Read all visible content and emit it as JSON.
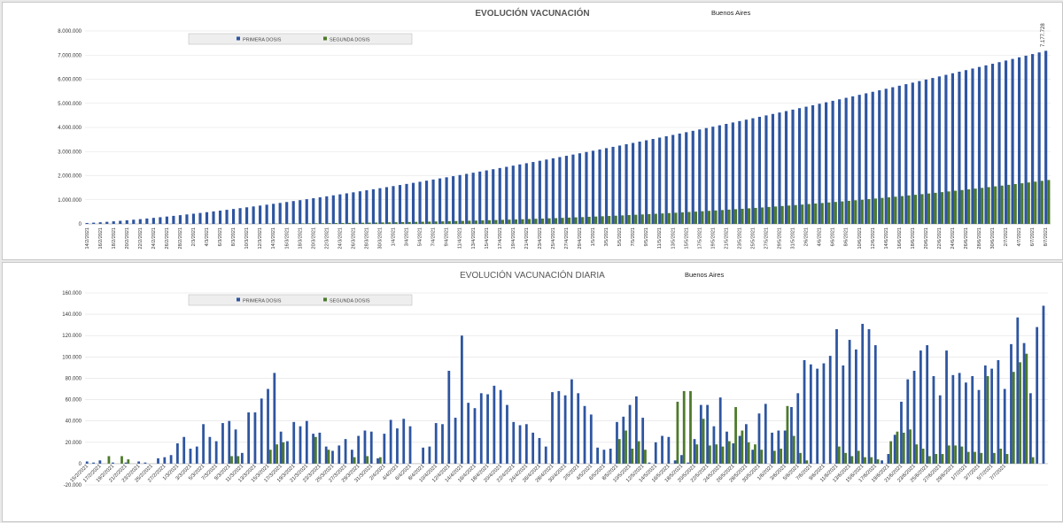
{
  "chart_data": [
    {
      "type": "bar",
      "title": "EVOLUCIÓN VACUNACIÓN",
      "subtitle": "Buenos Aires",
      "xlabel": "",
      "ylabel": "",
      "ylim": [
        0,
        8000000
      ],
      "yticks": [
        "0",
        "1.000.000",
        "2.000.000",
        "3.000.000",
        "4.000.000",
        "5.000.000",
        "6.000.000",
        "7.000.000",
        "8.000.000"
      ],
      "legend_position": "top-left",
      "series": [
        {
          "name": "PRIMERA DOSIS",
          "color": "#2e55a0",
          "start_value": 38000,
          "end_value": 7177728,
          "points": 145
        },
        {
          "name": "SEGUNDA DOSIS",
          "color": "#4d7a2b",
          "start_value": 0,
          "end_value": 1820000,
          "points": 145
        }
      ],
      "date_labels": [
        "14/2/2021",
        "16/2/2021",
        "18/2/2021",
        "20/2/2021",
        "22/2/2021",
        "24/2/2021",
        "26/2/2021",
        "28/2/2021",
        "2/3/2021",
        "4/3/2021",
        "6/3/2021",
        "8/3/2021",
        "10/3/2021",
        "12/3/2021",
        "14/3/2021",
        "16/3/2021",
        "18/3/2021",
        "20/3/2021",
        "22/3/2021",
        "24/3/2021",
        "26/3/2021",
        "28/3/2021",
        "30/3/2021",
        "1/4/2021",
        "3/4/2021",
        "5/4/2021",
        "7/4/2021",
        "9/4/2021",
        "11/4/2021",
        "13/4/2021",
        "15/4/2021",
        "17/4/2021",
        "19/4/2021",
        "21/4/2021",
        "23/4/2021",
        "25/4/2021",
        "27/4/2021",
        "29/4/2021",
        "1/5/2021",
        "3/5/2021",
        "5/5/2021",
        "7/5/2021",
        "9/5/2021",
        "11/5/2021",
        "13/5/2021",
        "15/5/2021",
        "17/5/2021",
        "19/5/2021",
        "21/5/2021",
        "23/5/2021",
        "25/5/2021",
        "27/5/2021",
        "29/5/2021",
        "31/5/2021",
        "2/6/2021",
        "4/6/2021",
        "6/6/2021",
        "8/6/2021",
        "10/6/2021",
        "12/6/2021",
        "14/6/2021",
        "16/6/2021",
        "18/6/2021",
        "20/6/2021",
        "22/6/2021",
        "24/6/2021",
        "26/6/2021",
        "28/6/2021",
        "30/6/2021",
        "2/7/2021",
        "4/7/2021",
        "6/7/2021",
        "8/7/2021"
      ],
      "last_label": "7.177.728"
    },
    {
      "type": "bar",
      "title": "EVOLUCIÓN VACUNACIÓN DIARIA",
      "subtitle": "Buenos Aires",
      "xlabel": "",
      "ylabel": "",
      "ylim": [
        -20000,
        160000
      ],
      "yticks": [
        "-20.000",
        "0",
        "20.000",
        "40.000",
        "60.000",
        "80.000",
        "100.000",
        "120.000",
        "140.000",
        "160.000"
      ],
      "legend_position": "top-left",
      "series": [
        {
          "name": "PRIMERA DOSIS",
          "color": "#2e55a0",
          "values": [
            2000,
            1000,
            3000,
            0,
            1000,
            0,
            1000,
            0,
            2000,
            1000,
            0,
            5000,
            6000,
            8000,
            19000,
            25000,
            14000,
            16000,
            37000,
            25000,
            21000,
            38000,
            40000,
            32000,
            10000,
            48000,
            48000,
            61000,
            70000,
            85000,
            30000,
            21000,
            39000,
            35000,
            40000,
            28000,
            29000,
            16000,
            12000,
            17000,
            23000,
            13000,
            26000,
            31000,
            30000,
            5000,
            28000,
            41000,
            33000,
            42000,
            35000,
            0,
            15000,
            16000,
            38000,
            37000,
            87000,
            43000,
            120000,
            57000,
            52000,
            66000,
            65000,
            73000,
            69000,
            55000,
            39000,
            36000,
            37000,
            29000,
            24000,
            16000,
            67000,
            68000,
            64000,
            79000,
            66000,
            54000,
            46000,
            15000,
            13000,
            14000,
            39000,
            44000,
            55000,
            63000,
            43000,
            1000,
            20000,
            26000,
            25000,
            3000,
            8000,
            1000,
            23000,
            55000,
            55000,
            35000,
            62000,
            30000,
            19000,
            26000,
            37000,
            13000,
            47000,
            56000,
            29000,
            31000,
            31000,
            53000,
            66000,
            97000,
            93000,
            89000,
            94000,
            101000,
            126000,
            92000,
            116000,
            107000,
            131000,
            126000,
            111000,
            3000,
            9000,
            27000,
            58000,
            79000,
            87000,
            106000,
            111000,
            82000,
            64000,
            106000,
            83000,
            85000,
            76000,
            82000,
            69000,
            92000,
            89000,
            97000,
            70000,
            112000,
            137000,
            113000,
            66000,
            128000,
            148000
          ]
        },
        {
          "name": "SEGUNDA DOSIS",
          "color": "#4d7a2b",
          "values": [
            0,
            0,
            0,
            7000,
            0,
            7000,
            4000,
            0,
            0,
            0,
            0,
            0,
            0,
            0,
            0,
            0,
            0,
            0,
            0,
            0,
            0,
            0,
            7000,
            7000,
            0,
            0,
            0,
            0,
            13000,
            18000,
            20000,
            0,
            0,
            0,
            0,
            25000,
            0,
            13000,
            0,
            0,
            0,
            6000,
            0,
            7000,
            0,
            6000,
            0,
            0,
            0,
            0,
            0,
            0,
            0,
            0,
            0,
            0,
            0,
            0,
            0,
            0,
            0,
            0,
            0,
            0,
            0,
            0,
            0,
            0,
            0,
            0,
            0,
            0,
            0,
            0,
            0,
            0,
            0,
            0,
            0,
            0,
            0,
            0,
            23000,
            31000,
            14000,
            21000,
            13000,
            0,
            0,
            0,
            0,
            58000,
            68000,
            68000,
            18000,
            42000,
            17000,
            18000,
            16000,
            21000,
            53000,
            31000,
            20000,
            18000,
            13000,
            0,
            12000,
            14000,
            54000,
            26000,
            10000,
            3000,
            0,
            0,
            0,
            0,
            16000,
            10000,
            7000,
            12000,
            6000,
            6000,
            4000,
            0,
            21000,
            30000,
            29000,
            32000,
            18000,
            14000,
            7000,
            9000,
            9000,
            17000,
            17000,
            16000,
            11000,
            11000,
            10000,
            82000,
            10000,
            14000,
            9000,
            86000,
            95000,
            103000,
            6000
          ]
        }
      ],
      "date_labels": [
        "15/2/2021",
        "17/2/2021",
        "19/2/2021",
        "21/2/2021",
        "23/2/2021",
        "25/2/2021",
        "27/2/2021",
        "1/3/2021",
        "3/3/2021",
        "5/3/2021",
        "7/3/2021",
        "9/3/2021",
        "11/3/2021",
        "13/3/2021",
        "15/3/2021",
        "17/3/2021",
        "19/3/2021",
        "21/3/2021",
        "23/3/2021",
        "25/3/2021",
        "27/3/2021",
        "29/3/2021",
        "31/3/2021",
        "2/4/2021",
        "4/4/2021",
        "6/4/2021",
        "8/4/2021",
        "10/4/2021",
        "12/4/2021",
        "14/4/2021",
        "16/4/2021",
        "18/4/2021",
        "20/4/2021",
        "22/4/2021",
        "24/4/2021",
        "26/4/2021",
        "28/4/2021",
        "30/4/2021",
        "2/5/2021",
        "4/5/2021",
        "6/5/2021",
        "8/5/2021",
        "10/5/2021",
        "12/5/2021",
        "14/5/2021",
        "16/5/2021",
        "18/5/2021",
        "20/5/2021",
        "22/5/2021",
        "24/5/2021",
        "26/5/2021",
        "28/5/2021",
        "30/5/2021",
        "1/6/2021",
        "3/6/2021",
        "5/6/2021",
        "7/6/2021",
        "9/6/2021",
        "11/6/2021",
        "13/6/2021",
        "15/6/2021",
        "17/6/2021",
        "19/6/2021",
        "21/6/2021",
        "23/6/2021",
        "25/6/2021",
        "27/6/2021",
        "29/6/2021",
        "1/7/2021",
        "3/7/2021",
        "5/7/2021",
        "7/7/2021"
      ]
    }
  ]
}
